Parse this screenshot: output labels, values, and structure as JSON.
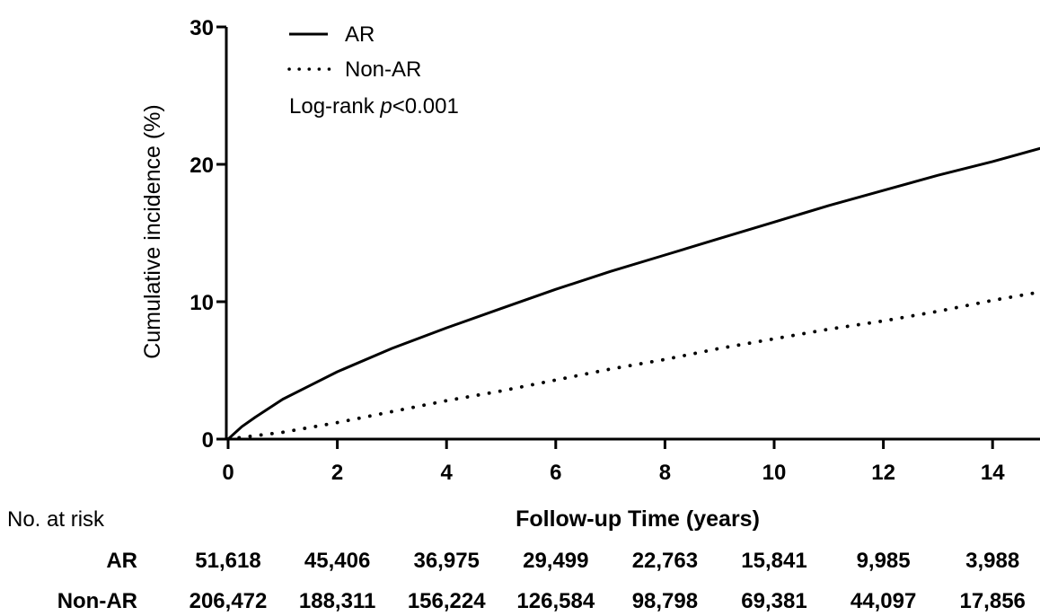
{
  "chart_data": {
    "type": "line",
    "title": "",
    "xlabel": "Follow-up Time (years)",
    "ylabel": "Cumulative incidence (%)",
    "xlim": [
      0,
      15
    ],
    "ylim": [
      0,
      30
    ],
    "x_ticks": [
      0,
      2,
      4,
      6,
      8,
      10,
      12,
      14
    ],
    "y_ticks": [
      0,
      10,
      20,
      30
    ],
    "grid": false,
    "legend_position": "top-left",
    "annotation": {
      "prefix": "Log-rank ",
      "italic": "p",
      "suffix": "<0.001"
    },
    "series": [
      {
        "name": "AR",
        "style": "solid",
        "color": "#000000",
        "x": [
          0,
          0.25,
          0.5,
          1,
          1.5,
          2,
          3,
          4,
          5,
          6,
          7,
          8,
          9,
          10,
          11,
          12,
          13,
          14,
          15
        ],
        "y": [
          0,
          0.9,
          1.6,
          2.9,
          3.9,
          4.9,
          6.6,
          8.1,
          9.5,
          10.9,
          12.2,
          13.4,
          14.6,
          15.8,
          17.0,
          18.1,
          19.2,
          20.2,
          21.3
        ]
      },
      {
        "name": "Non-AR",
        "style": "dotted",
        "color": "#000000",
        "x": [
          0,
          1,
          2,
          3,
          4,
          5,
          6,
          7,
          8,
          9,
          10,
          11,
          12,
          13,
          14,
          15
        ],
        "y": [
          0,
          0.5,
          1.2,
          2.0,
          2.8,
          3.5,
          4.3,
          5.1,
          5.8,
          6.6,
          7.3,
          8.0,
          8.6,
          9.3,
          10.1,
          10.8
        ]
      }
    ]
  },
  "risk_table": {
    "header": "No. at risk",
    "rows": [
      {
        "label": "AR",
        "values": [
          "51,618",
          "45,406",
          "36,975",
          "29,499",
          "22,763",
          "15,841",
          "9,985",
          "3,988"
        ]
      },
      {
        "label": "Non-AR",
        "values": [
          "206,472",
          "188,311",
          "156,224",
          "126,584",
          "98,798",
          "69,381",
          "44,097",
          "17,856"
        ]
      }
    ]
  }
}
